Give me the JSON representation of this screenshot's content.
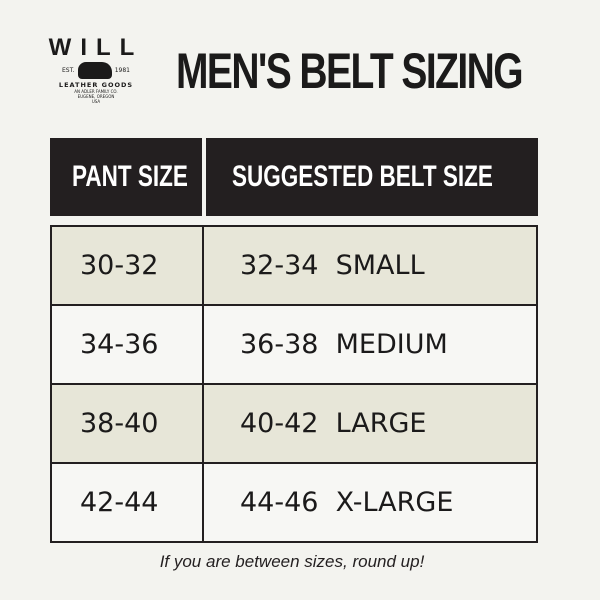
{
  "logo": {
    "name": "WILL",
    "est": "EST.",
    "year": "1981",
    "line1": "LEATHER GOODS",
    "line2": "AN ADLER FAMILY CO.",
    "line3": "EUGENE, OREGON",
    "line4": "USA"
  },
  "title": "MEN'S BELT SIZING",
  "headers": {
    "pant": "PANT SIZE",
    "belt": "SUGGESTED BELT SIZE"
  },
  "rows": [
    {
      "pant": "30-32",
      "belt": "32-34  SMALL"
    },
    {
      "pant": "34-36",
      "belt": "36-38  MEDIUM"
    },
    {
      "pant": "38-40",
      "belt": "40-42  LARGE"
    },
    {
      "pant": "42-44",
      "belt": "44-46  X-LARGE"
    }
  ],
  "footnote": "If you are between sizes, round up!",
  "colors": {
    "header": "#231f20",
    "row_alt": "#e7e6d8",
    "row_plain": "#f7f7f4",
    "background": "#f3f3ef"
  }
}
